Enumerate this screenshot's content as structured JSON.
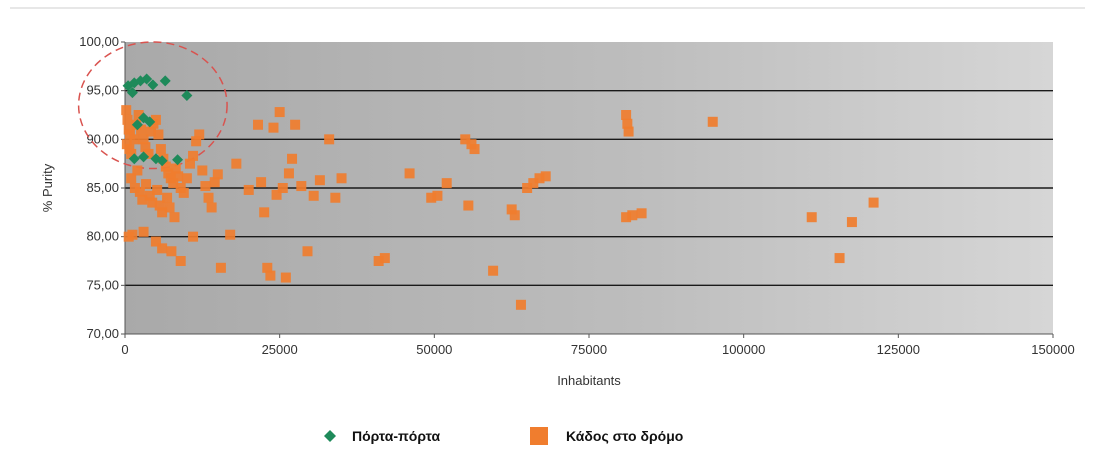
{
  "chart_data": {
    "type": "scatter",
    "title": "",
    "xlabel": "Inhabitants",
    "ylabel": "% Purity",
    "xlim": [
      0,
      150000
    ],
    "ylim": [
      70,
      100
    ],
    "x_ticks": [
      0,
      25000,
      50000,
      75000,
      100000,
      125000,
      150000
    ],
    "x_tick_labels": [
      "0",
      "25000",
      "50000",
      "75000",
      "100000",
      "125000",
      "150000"
    ],
    "y_ticks": [
      70,
      75,
      80,
      85,
      90,
      95,
      100
    ],
    "y_tick_labels": [
      "70,00",
      "75,00",
      "80,00",
      "85,00",
      "90,00",
      "95,00",
      "100,00"
    ],
    "grid": "horizontal",
    "legend_position": "bottom",
    "annotation": {
      "shape": "dashed-circle",
      "center": [
        4500,
        93.5
      ],
      "radius_x": 12000,
      "radius_y": 6.5,
      "color": "#d9534f"
    },
    "series": [
      {
        "name": "Πόρτα-πόρτα",
        "marker": "diamond",
        "color": "#1e8a5a",
        "points": [
          [
            500,
            95.5
          ],
          [
            1500,
            95.8
          ],
          [
            2500,
            96.0
          ],
          [
            3500,
            96.2
          ],
          [
            4500,
            95.6
          ],
          [
            6500,
            96.0
          ],
          [
            10000,
            94.5
          ],
          [
            1200,
            94.8
          ],
          [
            2000,
            91.5
          ],
          [
            3000,
            92.2
          ],
          [
            4000,
            91.8
          ],
          [
            1500,
            88.0
          ],
          [
            3000,
            88.2
          ],
          [
            5000,
            88.0
          ],
          [
            6000,
            87.8
          ],
          [
            8500,
            87.9
          ]
        ]
      },
      {
        "name": "Κάδος στο δρόμο",
        "marker": "square",
        "color": "#f07d2e",
        "points": [
          [
            200,
            93.0
          ],
          [
            400,
            92.0
          ],
          [
            600,
            91.0
          ],
          [
            800,
            90.5
          ],
          [
            300,
            89.5
          ],
          [
            700,
            89.0
          ],
          [
            1000,
            88.5
          ],
          [
            1500,
            90.0
          ],
          [
            1800,
            91.5
          ],
          [
            2200,
            92.5
          ],
          [
            2600,
            91.0
          ],
          [
            3000,
            90.0
          ],
          [
            3300,
            89.2
          ],
          [
            3800,
            88.5
          ],
          [
            4200,
            90.8
          ],
          [
            4600,
            91.6
          ],
          [
            5000,
            92.0
          ],
          [
            5400,
            90.5
          ],
          [
            5800,
            89.0
          ],
          [
            6200,
            88.0
          ],
          [
            6600,
            87.2
          ],
          [
            7000,
            86.5
          ],
          [
            7400,
            86.0
          ],
          [
            7800,
            85.5
          ],
          [
            8200,
            87.0
          ],
          [
            8600,
            86.2
          ],
          [
            9000,
            85.0
          ],
          [
            9500,
            84.5
          ],
          [
            10000,
            86.0
          ],
          [
            10500,
            87.5
          ],
          [
            11000,
            88.3
          ],
          [
            11500,
            89.8
          ],
          [
            12000,
            90.5
          ],
          [
            12500,
            86.8
          ],
          [
            13000,
            85.2
          ],
          [
            13500,
            84.0
          ],
          [
            14000,
            83.0
          ],
          [
            14500,
            85.6
          ],
          [
            15000,
            86.4
          ],
          [
            1000,
            86.0
          ],
          [
            1600,
            85.0
          ],
          [
            2000,
            86.8
          ],
          [
            2400,
            84.6
          ],
          [
            2800,
            83.8
          ],
          [
            3400,
            85.4
          ],
          [
            4000,
            84.2
          ],
          [
            4400,
            83.5
          ],
          [
            5200,
            84.8
          ],
          [
            5600,
            83.2
          ],
          [
            6000,
            82.5
          ],
          [
            6800,
            84.0
          ],
          [
            7200,
            83.0
          ],
          [
            8000,
            82.0
          ],
          [
            600,
            80.0
          ],
          [
            1200,
            80.2
          ],
          [
            3000,
            80.5
          ],
          [
            5000,
            79.5
          ],
          [
            6000,
            78.8
          ],
          [
            7500,
            78.5
          ],
          [
            9000,
            77.5
          ],
          [
            11000,
            80.0
          ],
          [
            15500,
            76.8
          ],
          [
            17000,
            80.2
          ],
          [
            18000,
            87.5
          ],
          [
            20000,
            84.8
          ],
          [
            21500,
            91.5
          ],
          [
            22000,
            85.6
          ],
          [
            22500,
            82.5
          ],
          [
            23000,
            76.8
          ],
          [
            23500,
            76.0
          ],
          [
            24000,
            91.2
          ],
          [
            24500,
            84.3
          ],
          [
            25000,
            92.8
          ],
          [
            25500,
            85.0
          ],
          [
            26000,
            75.8
          ],
          [
            26500,
            86.5
          ],
          [
            27000,
            88.0
          ],
          [
            27500,
            91.5
          ],
          [
            28500,
            85.2
          ],
          [
            29500,
            78.5
          ],
          [
            30500,
            84.2
          ],
          [
            31500,
            85.8
          ],
          [
            33000,
            90.0
          ],
          [
            34000,
            84.0
          ],
          [
            35000,
            86.0
          ],
          [
            41000,
            77.5
          ],
          [
            42000,
            77.8
          ],
          [
            46000,
            86.5
          ],
          [
            49500,
            84.0
          ],
          [
            50500,
            84.2
          ],
          [
            52000,
            85.5
          ],
          [
            55000,
            90.0
          ],
          [
            56000,
            89.5
          ],
          [
            56500,
            89.0
          ],
          [
            55500,
            83.2
          ],
          [
            59500,
            76.5
          ],
          [
            62500,
            82.8
          ],
          [
            63000,
            82.2
          ],
          [
            64000,
            73.0
          ],
          [
            65000,
            85.0
          ],
          [
            66000,
            85.5
          ],
          [
            67000,
            86.0
          ],
          [
            68000,
            86.2
          ],
          [
            81000,
            92.5
          ],
          [
            81200,
            91.6
          ],
          [
            81400,
            90.8
          ],
          [
            81000,
            82.0
          ],
          [
            82000,
            82.2
          ],
          [
            83500,
            82.4
          ],
          [
            95000,
            91.8
          ],
          [
            111000,
            82.0
          ],
          [
            115500,
            77.8
          ],
          [
            117500,
            81.5
          ],
          [
            121000,
            83.5
          ]
        ]
      }
    ]
  }
}
